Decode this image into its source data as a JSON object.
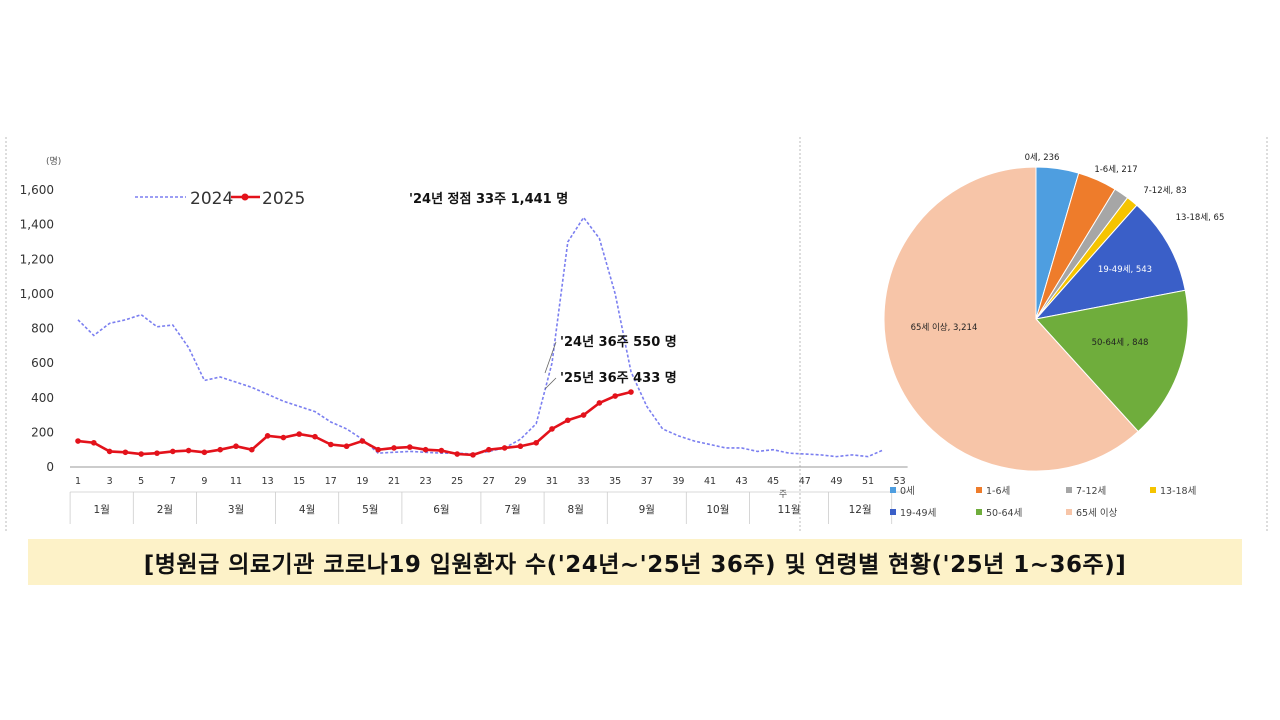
{
  "caption": "[병원급 의료기관 코로나19 입원환자 수('24년~'25년 36주) 및 연령별 현황('25년 1~36주)]",
  "colors": {
    "series_2024": "#7b7ff0",
    "series_2025": "#e3121b",
    "caption_bg": "#fdf2c8",
    "pie": [
      "#4e9ee0",
      "#ee7c2b",
      "#a6a6a6",
      "#f5c400",
      "#3a5fc8",
      "#6fad3c",
      "#f7c5a8"
    ]
  },
  "chart_data": [
    {
      "type": "line",
      "y_unit": "(명)",
      "x_unit": "주",
      "ylim": [
        0,
        1600
      ],
      "y_ticks": [
        "0",
        "200",
        "400",
        "600",
        "800",
        "1,000",
        "1,200",
        "1,400",
        "1,600"
      ],
      "x_tick_labels": [
        "1",
        "3",
        "5",
        "7",
        "9",
        "11",
        "13",
        "15",
        "17",
        "19",
        "21",
        "23",
        "25",
        "27",
        "29",
        "31",
        "33",
        "35",
        "37",
        "39",
        "41",
        "43",
        "45",
        "47",
        "49",
        "51",
        "53"
      ],
      "months": [
        "1월",
        "2월",
        "3월",
        "4월",
        "5월",
        "6월",
        "7월",
        "8월",
        "9월",
        "10월",
        "11월",
        "12월"
      ],
      "legend": [
        "2024",
        "2025"
      ],
      "series": [
        {
          "name": "2024",
          "x": [
            1,
            2,
            3,
            4,
            5,
            6,
            7,
            8,
            9,
            10,
            11,
            12,
            13,
            14,
            15,
            16,
            17,
            18,
            19,
            20,
            21,
            22,
            23,
            24,
            25,
            26,
            27,
            28,
            29,
            30,
            31,
            32,
            33,
            34,
            35,
            36,
            37,
            38,
            39,
            40,
            41,
            42,
            43,
            44,
            45,
            46,
            47,
            48,
            49,
            50,
            51,
            52
          ],
          "values": [
            850,
            760,
            830,
            850,
            880,
            810,
            820,
            690,
            500,
            520,
            490,
            460,
            420,
            380,
            350,
            320,
            260,
            220,
            160,
            80,
            85,
            90,
            85,
            80,
            80,
            75,
            90,
            110,
            160,
            250,
            600,
            1300,
            1441,
            1320,
            1000,
            550,
            350,
            220,
            180,
            150,
            130,
            110,
            110,
            90,
            100,
            80,
            75,
            70,
            60,
            70,
            60,
            100
          ]
        },
        {
          "name": "2025",
          "x": [
            1,
            2,
            3,
            4,
            5,
            6,
            7,
            8,
            9,
            10,
            11,
            12,
            13,
            14,
            15,
            16,
            17,
            18,
            19,
            20,
            21,
            22,
            23,
            24,
            25,
            26,
            27,
            28,
            29,
            30,
            31,
            32,
            33,
            34,
            35,
            36
          ],
          "values": [
            150,
            140,
            90,
            85,
            75,
            80,
            90,
            95,
            85,
            100,
            120,
            100,
            180,
            170,
            190,
            175,
            130,
            120,
            150,
            100,
            110,
            115,
            100,
            95,
            75,
            70,
            100,
            110,
            120,
            140,
            220,
            270,
            300,
            370,
            410,
            433
          ]
        }
      ],
      "annotations": [
        "'24년 정점 33주 1,441 명",
        "'24년 36주 550 명",
        "'25년 36주 433 명"
      ]
    },
    {
      "type": "pie",
      "labels": [
        "0세",
        "1-6세",
        "7-12세",
        "13-18세",
        "19-49세",
        "50-64세",
        "65세 이상"
      ],
      "values": [
        236,
        217,
        83,
        65,
        543,
        848,
        3214
      ],
      "slice_labels": [
        "0세, 236",
        "1-6세, 217",
        "7-12세, 83",
        "13-18세, 65",
        "19-49세, 543",
        "50-64세 , 848",
        "65세 이상, 3,214"
      ]
    }
  ]
}
